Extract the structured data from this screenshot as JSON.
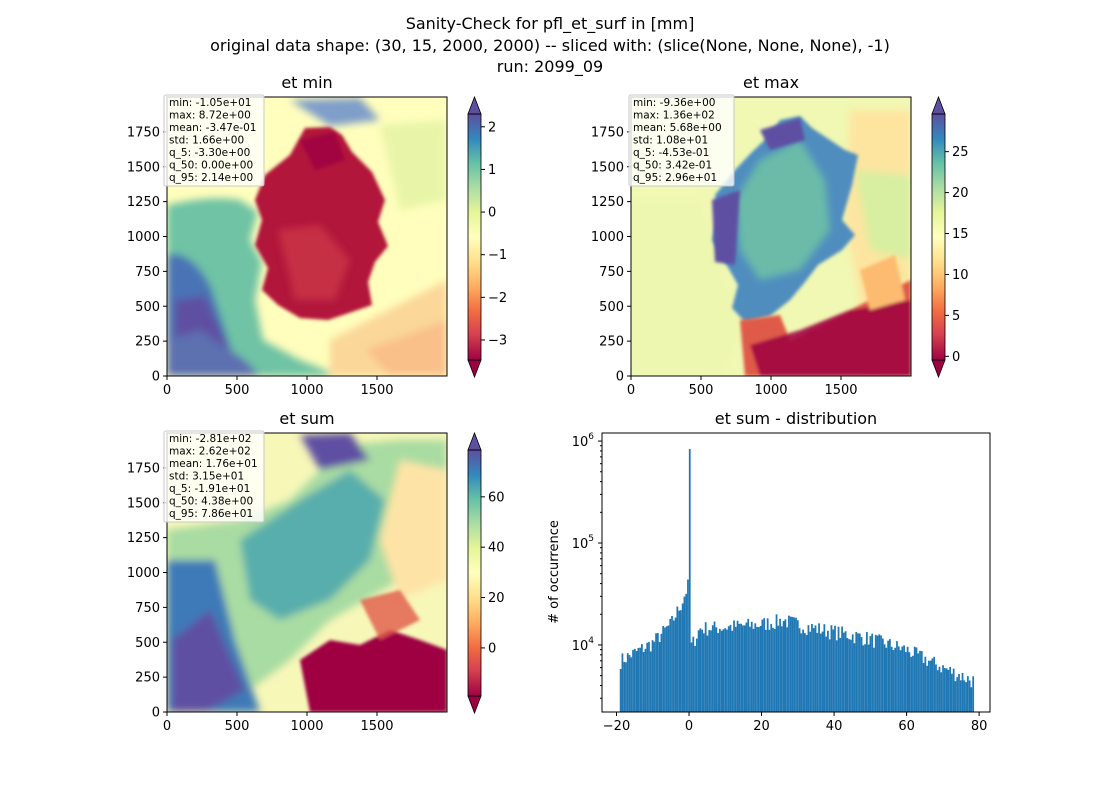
{
  "figure": {
    "title_lines": [
      "Sanity-Check for pfl_et_surf in [mm]",
      "original data shape: (30, 15, 2000, 2000) -- sliced with: (slice(None, None, None), -1)",
      "run: 2099_09"
    ]
  },
  "colors": {
    "spectral": [
      "#9e0142",
      "#d53e4f",
      "#f46d43",
      "#fdae61",
      "#fee08b",
      "#ffffbf",
      "#e6f598",
      "#abdda4",
      "#66c2a5",
      "#3288bd",
      "#5e4fa2"
    ],
    "hist_bar": "#1f77b4",
    "axis": "#000000"
  },
  "chart_data": [
    {
      "type": "heatmap",
      "title": "et min",
      "xticks": [
        0,
        500,
        1000,
        1500
      ],
      "yticks": [
        0,
        250,
        500,
        750,
        1000,
        1250,
        1500,
        1750
      ],
      "xlim": [
        0,
        2000
      ],
      "ylim": [
        0,
        2000
      ],
      "colorbar": {
        "min": -3.47,
        "max": 2.3,
        "ticks": [
          -3,
          -2,
          -1,
          0,
          1,
          2
        ],
        "tick_labels": [
          "−3",
          "−2",
          "−1",
          "0",
          "1",
          "2"
        ],
        "extend": "both"
      },
      "stats": [
        "min: -1.05e+01",
        "max: 8.72e+00",
        "mean: -3.47e-01",
        "std: 1.66e+00",
        "q_5: -3.30e+00",
        "q_50: 0.00e+00",
        "q_95: 2.14e+00"
      ]
    },
    {
      "type": "heatmap",
      "title": "et max",
      "xticks": [
        0,
        500,
        1000,
        1500
      ],
      "yticks": [
        0,
        250,
        500,
        750,
        1000,
        1250,
        1500,
        1750
      ],
      "xlim": [
        0,
        2000
      ],
      "ylim": [
        0,
        2000
      ],
      "colorbar": {
        "min": -0.45,
        "max": 29.6,
        "ticks": [
          0,
          5,
          10,
          15,
          20,
          25
        ],
        "tick_labels": [
          "0",
          "5",
          "10",
          "15",
          "20",
          "25"
        ],
        "extend": "both"
      },
      "stats": [
        "min: -9.36e+00",
        "max: 1.36e+02",
        "mean: 5.68e+00",
        "std: 1.08e+01",
        "q_5: -4.53e-01",
        "q_50: 3.42e-01",
        "q_95: 2.96e+01"
      ]
    },
    {
      "type": "heatmap",
      "title": "et sum",
      "xticks": [
        0,
        500,
        1000,
        1500
      ],
      "yticks": [
        0,
        250,
        500,
        750,
        1000,
        1250,
        1500,
        1750
      ],
      "xlim": [
        0,
        2000
      ],
      "ylim": [
        0,
        2000
      ],
      "colorbar": {
        "min": -19.1,
        "max": 78.6,
        "ticks": [
          0,
          20,
          40,
          60
        ],
        "tick_labels": [
          "0",
          "20",
          "40",
          "60"
        ],
        "extend": "both"
      },
      "stats": [
        "min: -2.81e+02",
        "max: 2.62e+02",
        "mean: 1.76e+01",
        "std: 3.15e+01",
        "q_5: -1.91e+01",
        "q_50: 4.38e+00",
        "q_95: 7.86e+01"
      ]
    },
    {
      "type": "bar",
      "title": "et sum - distribution",
      "xlabel": "",
      "ylabel": "# of occurrence",
      "yscale": "log",
      "xlim": [
        -24,
        83
      ],
      "ylim": [
        2200,
        1200000
      ],
      "xticks": [
        -20,
        0,
        20,
        40,
        60,
        80
      ],
      "xtick_labels": [
        "−20",
        "0",
        "20",
        "40",
        "60",
        "80"
      ],
      "yticks": [
        10000,
        100000,
        1000000
      ],
      "ytick_labels": [
        {
          "base": "10",
          "exp": "4"
        },
        {
          "base": "10",
          "exp": "5"
        },
        {
          "base": "10",
          "exp": "6"
        }
      ],
      "bin_range": [
        -19.1,
        78.6
      ],
      "bin_count": 200,
      "shape": {
        "left_ramp": {
          "x": [
            -19,
            -10,
            -5,
            -2,
            -0.3
          ],
          "y": [
            7000,
            10500,
            16000,
            26000,
            38000
          ]
        },
        "spike": {
          "x": 0,
          "y": 820000
        },
        "right_body": {
          "x": [
            0.5,
            3,
            10,
            20,
            26,
            33,
            40,
            50,
            60,
            70,
            78
          ],
          "y": [
            9500,
            14500,
            15000,
            16000,
            17500,
            15000,
            13500,
            11500,
            9000,
            6000,
            4500
          ]
        }
      }
    }
  ]
}
